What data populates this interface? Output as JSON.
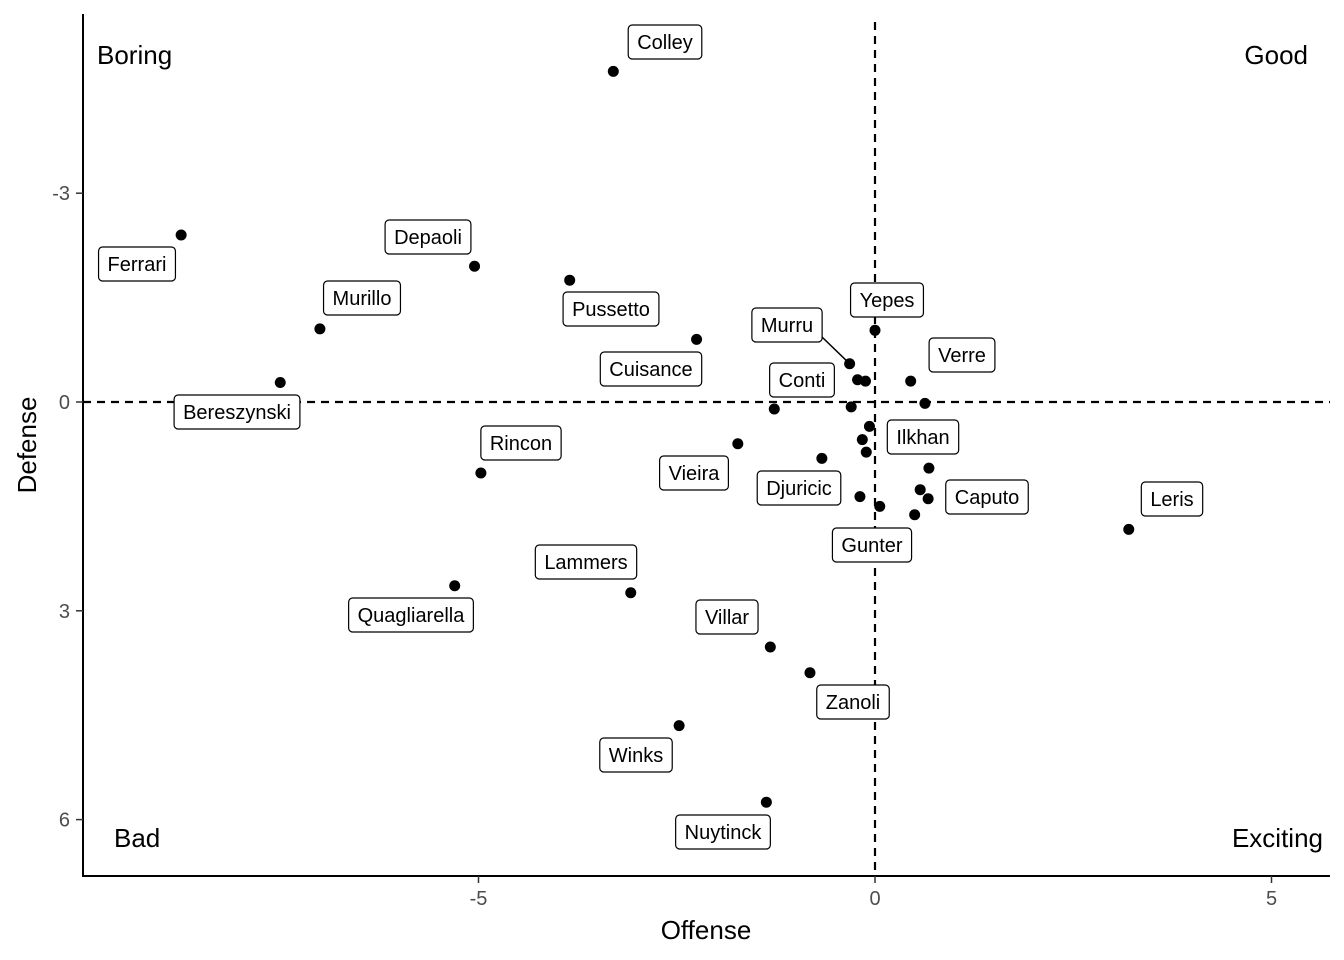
{
  "chart_data": {
    "type": "scatter",
    "xlabel": "Offense",
    "ylabel": "Defense",
    "xlim": [
      -10,
      5.6
    ],
    "ylim": [
      6.8,
      -5.5
    ],
    "y_axis_reversed": true,
    "xticks": [
      -5,
      0,
      5
    ],
    "xtick_labels": [
      "-5",
      "0",
      "5"
    ],
    "yticks": [
      -3,
      0,
      3,
      6
    ],
    "ytick_labels": [
      "-3",
      "0",
      "3",
      "6"
    ],
    "reference_lines": {
      "x": 0,
      "y": 0,
      "style": "dashed"
    },
    "grid": false,
    "quadrant_labels": {
      "top_left": "Boring",
      "top_right": "Good",
      "bottom_left": "Bad",
      "bottom_right": "Exciting"
    },
    "points": [
      {
        "x": -3.3,
        "y": -4.75,
        "label": "Colley"
      },
      {
        "x": -8.75,
        "y": -2.4,
        "label": "Ferrari"
      },
      {
        "x": -5.05,
        "y": -1.95,
        "label": "Depaoli"
      },
      {
        "x": -3.85,
        "y": -1.75,
        "label": "Pussetto"
      },
      {
        "x": -7.0,
        "y": -1.05,
        "label": "Murillo"
      },
      {
        "x": -2.25,
        "y": -0.9,
        "label": "Cuisance"
      },
      {
        "x": -7.5,
        "y": -0.28,
        "label": "Bereszynski"
      },
      {
        "x": 0.0,
        "y": -1.03,
        "label": "Yepes"
      },
      {
        "x": -0.32,
        "y": -0.55,
        "label": "Murru"
      },
      {
        "x": 0.45,
        "y": -0.3,
        "label": "Verre"
      },
      {
        "x": -0.22,
        "y": -0.32,
        "label": ""
      },
      {
        "x": -0.12,
        "y": -0.3,
        "label": ""
      },
      {
        "x": -1.27,
        "y": 0.1,
        "label": "Conti"
      },
      {
        "x": -0.3,
        "y": 0.07,
        "label": ""
      },
      {
        "x": 0.63,
        "y": 0.02,
        "label": ""
      },
      {
        "x": -0.07,
        "y": 0.35,
        "label": ""
      },
      {
        "x": -0.16,
        "y": 0.54,
        "label": "Ilkhan"
      },
      {
        "x": -0.11,
        "y": 0.72,
        "label": ""
      },
      {
        "x": -1.73,
        "y": 0.6,
        "label": "Vieira"
      },
      {
        "x": -0.67,
        "y": 0.81,
        "label": "Djuricic"
      },
      {
        "x": 0.68,
        "y": 0.95,
        "label": ""
      },
      {
        "x": -4.97,
        "y": 1.02,
        "label": "Rincon"
      },
      {
        "x": 0.57,
        "y": 1.26,
        "label": ""
      },
      {
        "x": 0.67,
        "y": 1.39,
        "label": "Caputo"
      },
      {
        "x": -0.19,
        "y": 1.36,
        "label": ""
      },
      {
        "x": 0.06,
        "y": 1.5,
        "label": ""
      },
      {
        "x": 0.5,
        "y": 1.62,
        "label": "Gunter"
      },
      {
        "x": 3.2,
        "y": 1.83,
        "label": "Leris"
      },
      {
        "x": -5.3,
        "y": 2.64,
        "label": "Quagliarella"
      },
      {
        "x": -3.08,
        "y": 2.74,
        "label": "Lammers"
      },
      {
        "x": -1.32,
        "y": 3.52,
        "label": "Villar"
      },
      {
        "x": -0.82,
        "y": 3.89,
        "label": "Zanoli"
      },
      {
        "x": -2.47,
        "y": 4.65,
        "label": "Winks"
      },
      {
        "x": -1.37,
        "y": 5.75,
        "label": "Nuytinck"
      }
    ]
  }
}
